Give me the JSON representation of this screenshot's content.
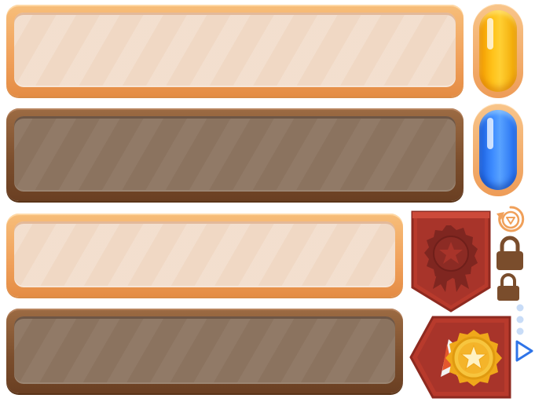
{
  "panels": [
    {
      "name": "light-wood-panel-1",
      "style": "light"
    },
    {
      "name": "dark-wood-panel-1",
      "style": "dark"
    },
    {
      "name": "light-wood-panel-2",
      "style": "light"
    },
    {
      "name": "dark-wood-panel-2",
      "style": "dark"
    }
  ],
  "buttons": {
    "gold": {
      "icon": "gold-pill-button",
      "color": "#ffc21a"
    },
    "blue": {
      "icon": "blue-pill-button",
      "color": "#3d8bff"
    }
  },
  "icons": {
    "replay": "replay-icon",
    "lock_large": "lock-icon",
    "lock_small": "lock-icon",
    "dots": "ellipsis-dots-icon",
    "play": "play-arrow-icon"
  },
  "badges": {
    "locked": {
      "icon": "locked-medal-ribbon",
      "color": "#b83a2c"
    },
    "unlocked": {
      "icon": "gold-star-medal",
      "color": "#f4c040"
    }
  },
  "colors": {
    "wood_light": "#f0a05a",
    "wood_dark": "#7a4d2c",
    "lock": "#7a4d2c",
    "ribbon": "#b83a2c"
  }
}
